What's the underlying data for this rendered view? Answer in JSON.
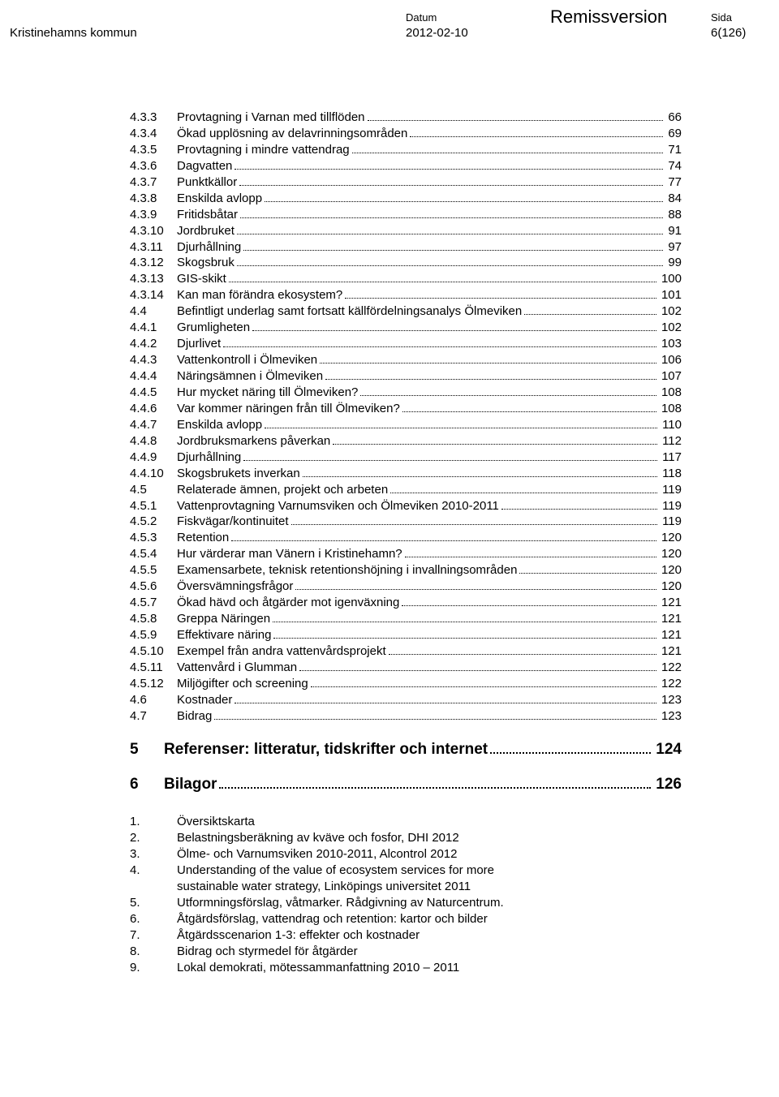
{
  "header": {
    "org": "Kristinehamns kommun",
    "datum_label": "Datum",
    "datum_value": "2012-02-10",
    "title_word": "Remissversion",
    "sida_label": "Sida",
    "sida_value": "6(126)"
  },
  "toc": [
    {
      "n": "4.3.3",
      "t": "Provtagning i Varnan med tillflöden",
      "p": "66"
    },
    {
      "n": "4.3.4",
      "t": "Ökad upplösning av delavrinningsområden",
      "p": "69"
    },
    {
      "n": "4.3.5",
      "t": "Provtagning i mindre vattendrag",
      "p": "71"
    },
    {
      "n": "4.3.6",
      "t": "Dagvatten",
      "p": "74"
    },
    {
      "n": "4.3.7",
      "t": "Punktkällor",
      "p": "77"
    },
    {
      "n": "4.3.8",
      "t": "Enskilda avlopp",
      "p": "84"
    },
    {
      "n": "4.3.9",
      "t": "Fritidsbåtar",
      "p": "88"
    },
    {
      "n": "4.3.10",
      "t": "Jordbruket",
      "p": "91"
    },
    {
      "n": "4.3.11",
      "t": "Djurhållning",
      "p": "97"
    },
    {
      "n": "4.3.12",
      "t": "Skogsbruk",
      "p": "99"
    },
    {
      "n": "4.3.13",
      "t": "GIS-skikt",
      "p": "100"
    },
    {
      "n": "4.3.14",
      "t": "Kan man förändra ekosystem?",
      "p": "101"
    },
    {
      "n": "4.4",
      "t": "Befintligt underlag samt fortsatt källfördelningsanalys Ölmeviken",
      "p": "102"
    },
    {
      "n": "4.4.1",
      "t": "Grumligheten",
      "p": "102"
    },
    {
      "n": "4.4.2",
      "t": "Djurlivet",
      "p": "103"
    },
    {
      "n": "4.4.3",
      "t": "Vattenkontroll i Ölmeviken",
      "p": "106"
    },
    {
      "n": "4.4.4",
      "t": "Näringsämnen i Ölmeviken",
      "p": "107"
    },
    {
      "n": "4.4.5",
      "t": "Hur mycket näring till Ölmeviken?",
      "p": "108"
    },
    {
      "n": "4.4.6",
      "t": "Var kommer näringen från till Ölmeviken?",
      "p": "108"
    },
    {
      "n": "4.4.7",
      "t": "Enskilda avlopp",
      "p": "110"
    },
    {
      "n": "4.4.8",
      "t": "Jordbruksmarkens påverkan",
      "p": "112"
    },
    {
      "n": "4.4.9",
      "t": "Djurhållning",
      "p": "117"
    },
    {
      "n": "4.4.10",
      "t": "Skogsbrukets inverkan",
      "p": "118"
    },
    {
      "n": "4.5",
      "t": "Relaterade ämnen, projekt och arbeten",
      "p": "119"
    },
    {
      "n": "4.5.1",
      "t": "Vattenprovtagning Varnumsviken och Ölmeviken 2010-2011",
      "p": "119"
    },
    {
      "n": "4.5.2",
      "t": "Fiskvägar/kontinuitet",
      "p": "119"
    },
    {
      "n": "4.5.3",
      "t": "Retention",
      "p": "120"
    },
    {
      "n": "4.5.4",
      "t": "Hur värderar man Vänern i Kristinehamn?",
      "p": "120"
    },
    {
      "n": "4.5.5",
      "t": "Examensarbete, teknisk retentionshöjning i invallningsområden",
      "p": "120"
    },
    {
      "n": "4.5.6",
      "t": "Översvämningsfrågor",
      "p": "120"
    },
    {
      "n": "4.5.7",
      "t": "Ökad hävd och åtgärder mot igenväxning",
      "p": "121"
    },
    {
      "n": "4.5.8",
      "t": "Greppa Näringen",
      "p": "121"
    },
    {
      "n": "4.5.9",
      "t": "Effektivare näring",
      "p": "121"
    },
    {
      "n": "4.5.10",
      "t": "Exempel från andra vattenvårdsprojekt",
      "p": "121"
    },
    {
      "n": "4.5.11",
      "t": "Vattenvård i Glumman",
      "p": "122"
    },
    {
      "n": "4.5.12",
      "t": "Miljögifter och screening",
      "p": "122"
    },
    {
      "n": "4.6",
      "t": "Kostnader",
      "p": "123"
    },
    {
      "n": "4.7",
      "t": "Bidrag",
      "p": "123"
    }
  ],
  "toc_h1": [
    {
      "n": "5",
      "t": "Referenser: litteratur, tidskrifter och internet",
      "p": "124"
    },
    {
      "n": "6",
      "t": "Bilagor",
      "p": "126"
    }
  ],
  "appendix": [
    {
      "n": "1.",
      "t": "Översiktskarta"
    },
    {
      "n": "2.",
      "t": "Belastningsberäkning av kväve och fosfor, DHI 2012"
    },
    {
      "n": "3.",
      "t": "Ölme- och Varnumsviken 2010-2011, Alcontrol 2012"
    },
    {
      "n": "4.",
      "t": "Understanding of the value of ecosystem services for more"
    },
    {
      "indent": true,
      "t": "sustainable water  strategy, Linköpings universitet 2011"
    },
    {
      "n": "5.",
      "t": "Utformningsförslag, våtmarker. Rådgivning av Naturcentrum."
    },
    {
      "n": "6.",
      "t": "Åtgärdsförslag, vattendrag och retention: kartor och bilder"
    },
    {
      "n": "7.",
      "t": "Åtgärdsscenarion 1-3: effekter och kostnader"
    },
    {
      "n": "8.",
      "t": "Bidrag och styrmedel för åtgärder"
    },
    {
      "n": "9.",
      "t": "Lokal demokrati, mötessammanfattning 2010 – 2011"
    }
  ]
}
